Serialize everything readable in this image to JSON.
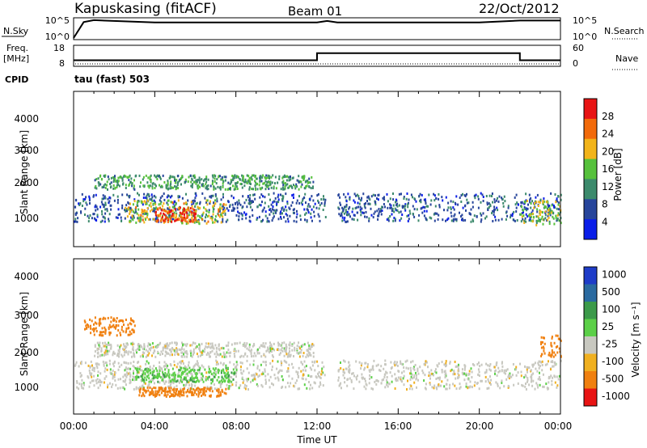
{
  "header": {
    "site": "Kapuskasing (fitACF)",
    "beam": "Beam 01",
    "date": "22/Oct/2012"
  },
  "noise_panel": {
    "left_label": "N.Sky",
    "left_ticks": [
      "10^5",
      "10^0"
    ],
    "right_ticks": [
      "10^5",
      "10^0"
    ],
    "right_label": "N.Search"
  },
  "freq_panel": {
    "left_label_line1": "Freq.",
    "left_label_line2": "[MHz]",
    "left_ticks": [
      "18",
      "8"
    ],
    "right_ticks": [
      "60",
      "0"
    ],
    "right_label": "Nave"
  },
  "cpid": {
    "label": "CPID",
    "value": "tau (fast) 503"
  },
  "x_axis": {
    "label": "Time UT",
    "ticks": [
      "00:00",
      "04:00",
      "08:00",
      "12:00",
      "16:00",
      "20:00",
      "00:00"
    ]
  },
  "power_panel": {
    "ylabel": "Slant Range [km]",
    "yticks": [
      "1000",
      "2000",
      "3000",
      "4000"
    ],
    "colorbar_label": "Power [dB]",
    "colorbar_ticks": [
      "4",
      "8",
      "12",
      "16",
      "20",
      "24",
      "28"
    ],
    "colors": [
      "#0a1ee8",
      "#27459b",
      "#3c8a6c",
      "#56c13c",
      "#f2b41a",
      "#f26a0a",
      "#e81414"
    ]
  },
  "velocity_panel": {
    "ylabel": "Slant Range [km]",
    "yticks": [
      "1000",
      "2000",
      "3000",
      "4000"
    ],
    "colorbar_label": "Velocity [m s⁻¹]",
    "colorbar_ticks": [
      "1000",
      "500",
      "100",
      "25",
      "-25",
      "-100",
      "-500",
      "-1000"
    ],
    "colors": [
      "#1e3cc8",
      "#2a6aa0",
      "#3c9a4a",
      "#5cd048",
      "#c8c8c0",
      "#f0b020",
      "#f08010",
      "#e81414"
    ]
  },
  "chart_data": [
    {
      "type": "line",
      "title": "N.Sky / N.Search",
      "xlabel": "Time UT",
      "x": [
        "00:00",
        "00:30",
        "01:00",
        "04:00",
        "12:00",
        "12:30",
        "13:00",
        "20:00",
        "22:00",
        "24:00"
      ],
      "series": [
        {
          "values_log10": [
            0,
            4.1,
            4.6,
            4.0,
            4.0,
            4.4,
            4.0,
            4.0,
            4.5,
            4.5
          ]
        }
      ],
      "ylim": [
        0,
        5
      ],
      "log_scale": true
    },
    {
      "type": "line",
      "title": "Freq. / Nave",
      "xlabel": "Time UT",
      "x": [
        "00:00",
        "12:00",
        "12:00",
        "22:00",
        "22:00",
        "24:00"
      ],
      "series": [
        {
          "name": "Freq.",
          "values": [
            10.5,
            10.5,
            14.5,
            14.5,
            10.5,
            10.5
          ]
        }
      ],
      "ylim": [
        8,
        18
      ],
      "grid": false
    },
    {
      "type": "heatmap",
      "title": "Power [dB]",
      "xlabel": "Time UT",
      "ylabel": "Slant Range [km]",
      "xlim": [
        "00:00",
        "24:00"
      ],
      "ylim": [
        180,
        4500
      ],
      "colorbar_range": [
        0,
        30
      ],
      "echo_regions": [
        {
          "t_start_h": 0.0,
          "t_end_h": 12.4,
          "range_km": [
            900,
            1700
          ],
          "level_db": 7
        },
        {
          "t_start_h": 1.0,
          "t_end_h": 11.8,
          "range_km": [
            1800,
            2200
          ],
          "level_db": 12
        },
        {
          "t_start_h": 2.5,
          "t_end_h": 7.5,
          "range_km": [
            850,
            1500
          ],
          "level_db": 18
        },
        {
          "t_start_h": 4.0,
          "t_end_h": 6.0,
          "range_km": [
            900,
            1300
          ],
          "level_db": 26
        },
        {
          "t_start_h": 13.0,
          "t_end_h": 24.0,
          "range_km": [
            900,
            1700
          ],
          "level_db": 7
        },
        {
          "t_start_h": 22.0,
          "t_end_h": 24.0,
          "range_km": [
            800,
            1500
          ],
          "level_db": 16
        }
      ]
    },
    {
      "type": "heatmap",
      "title": "Velocity [m s^-1]",
      "xlabel": "Time UT",
      "ylabel": "Slant Range [km]",
      "xlim": [
        "00:00",
        "24:00"
      ],
      "ylim": [
        180,
        4500
      ],
      "colorbar_range": [
        -1000,
        1000
      ],
      "echo_regions": [
        {
          "t_start_h": 0.0,
          "t_end_h": 12.4,
          "range_km": [
            900,
            1700
          ],
          "velocity_ms": 0
        },
        {
          "t_start_h": 1.0,
          "t_end_h": 11.8,
          "range_km": [
            1800,
            2200
          ],
          "velocity_ms": 0
        },
        {
          "t_start_h": 3.0,
          "t_end_h": 8.0,
          "range_km": [
            1100,
            1500
          ],
          "velocity_ms": 80
        },
        {
          "t_start_h": 3.2,
          "t_end_h": 7.5,
          "range_km": [
            700,
            950
          ],
          "velocity_ms": -150
        },
        {
          "t_start_h": 0.5,
          "t_end_h": 3.0,
          "range_km": [
            2400,
            2900
          ],
          "velocity_ms": -300
        },
        {
          "t_start_h": 13.0,
          "t_end_h": 24.0,
          "range_km": [
            900,
            1700
          ],
          "velocity_ms": 0
        },
        {
          "t_start_h": 23.0,
          "t_end_h": 24.0,
          "range_km": [
            1800,
            2400
          ],
          "velocity_ms": -200
        }
      ]
    }
  ]
}
